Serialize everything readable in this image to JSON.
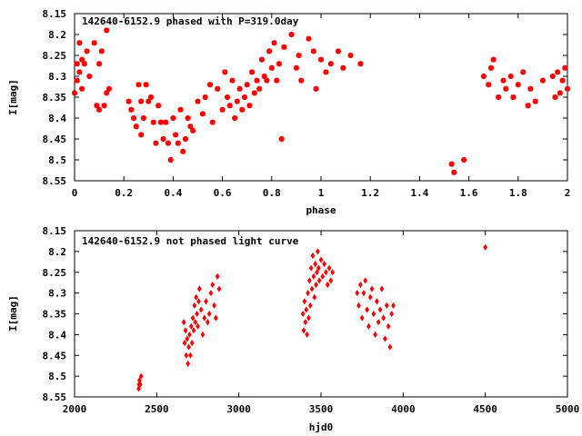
{
  "chart_data": [
    {
      "type": "scatter",
      "title": "142640-6152.9 phased with P=319.0day",
      "xlabel": "phase",
      "ylabel": "I[mag]",
      "xlim": [
        0,
        2
      ],
      "ylim": [
        8.55,
        8.15
      ],
      "y_inverted": true,
      "xticks": [
        "0",
        "0.2",
        "0.4",
        "0.6",
        "0.8",
        "1",
        "1.2",
        "1.4",
        "1.6",
        "1.8",
        "2"
      ],
      "yticks": [
        "8.15",
        "8.2",
        "8.25",
        "8.3",
        "8.35",
        "8.4",
        "8.45",
        "8.5",
        "8.55"
      ],
      "grid": false,
      "legend": "none",
      "marker_color": "#ff0000",
      "series": [
        {
          "x": [
            0.0,
            0.01,
            0.01,
            0.02,
            0.02,
            0.03,
            0.03,
            0.04,
            0.05,
            0.06,
            0.08,
            0.09,
            0.1,
            0.1,
            0.11,
            0.12,
            0.13,
            0.13,
            0.14,
            0.22,
            0.23,
            0.24,
            0.25,
            0.26,
            0.27,
            0.27,
            0.28,
            0.29,
            0.3,
            0.31,
            0.32,
            0.33,
            0.34,
            0.35,
            0.36,
            0.37,
            0.38,
            0.39,
            0.4,
            0.41,
            0.42,
            0.43,
            0.44,
            0.45,
            0.46,
            0.47,
            0.48,
            0.5,
            0.52,
            0.53,
            0.55,
            0.56,
            0.58,
            0.6,
            0.61,
            0.62,
            0.63,
            0.64,
            0.65,
            0.66,
            0.67,
            0.68,
            0.69,
            0.7,
            0.71,
            0.72,
            0.73,
            0.74,
            0.75,
            0.76,
            0.77,
            0.78,
            0.79,
            0.8,
            0.81,
            0.82,
            0.83,
            0.84,
            0.85,
            0.88,
            0.9,
            0.91,
            0.92,
            0.95,
            0.97,
            0.98,
            1.0,
            1.02,
            1.04,
            1.07,
            1.09,
            1.12,
            1.16,
            1.53,
            1.54,
            1.58,
            1.66,
            1.68,
            1.69,
            1.7,
            1.72,
            1.74,
            1.75,
            1.77,
            1.78,
            1.8,
            1.82,
            1.84,
            1.85,
            1.87,
            1.9,
            1.94,
            1.95,
            1.96,
            1.97,
            1.98,
            1.99,
            2.0
          ],
          "y": [
            8.34,
            8.27,
            8.31,
            8.22,
            8.29,
            8.26,
            8.33,
            8.27,
            8.24,
            8.3,
            8.22,
            8.37,
            8.38,
            8.27,
            8.24,
            8.37,
            8.34,
            8.19,
            8.33,
            8.36,
            8.38,
            8.4,
            8.42,
            8.32,
            8.36,
            8.44,
            8.4,
            8.32,
            8.36,
            8.35,
            8.41,
            8.46,
            8.37,
            8.41,
            8.45,
            8.41,
            8.46,
            8.5,
            8.4,
            8.44,
            8.46,
            8.38,
            8.48,
            8.45,
            8.4,
            8.42,
            8.43,
            8.36,
            8.39,
            8.35,
            8.32,
            8.41,
            8.33,
            8.38,
            8.29,
            8.35,
            8.37,
            8.31,
            8.4,
            8.36,
            8.33,
            8.38,
            8.35,
            8.32,
            8.37,
            8.29,
            8.34,
            8.31,
            8.33,
            8.26,
            8.3,
            8.31,
            8.24,
            8.28,
            8.22,
            8.31,
            8.27,
            8.45,
            8.23,
            8.2,
            8.28,
            8.25,
            8.31,
            8.21,
            8.24,
            8.33,
            8.26,
            8.29,
            8.27,
            8.24,
            8.28,
            8.25,
            8.27,
            8.51,
            8.53,
            8.5,
            8.3,
            8.32,
            8.28,
            8.26,
            8.35,
            8.31,
            8.33,
            8.3,
            8.35,
            8.32,
            8.29,
            8.37,
            8.33,
            8.36,
            8.31,
            8.3,
            8.35,
            8.29,
            8.34,
            8.31,
            8.28,
            8.33
          ]
        }
      ]
    },
    {
      "type": "scatter",
      "title": "142640-6152.9 not phased light curve",
      "xlabel": "hjd0",
      "ylabel": "I[mag]",
      "xlim": [
        2000,
        5000
      ],
      "ylim": [
        8.55,
        8.15
      ],
      "y_inverted": true,
      "xticks": [
        "2000",
        "2500",
        "3000",
        "3500",
        "4000",
        "4500",
        "5000"
      ],
      "yticks": [
        "8.15",
        "8.2",
        "8.25",
        "8.3",
        "8.35",
        "8.4",
        "8.45",
        "8.5",
        "8.55"
      ],
      "grid": false,
      "legend": "none",
      "marker_color": "#ff0000",
      "series": [
        {
          "x": [
            2390,
            2392,
            2395,
            2400,
            2405,
            2665,
            2670,
            2675,
            2680,
            2685,
            2690,
            2695,
            2700,
            2705,
            2710,
            2715,
            2720,
            2725,
            2730,
            2735,
            2740,
            2745,
            2750,
            2755,
            2760,
            2770,
            2780,
            2790,
            2800,
            2810,
            2820,
            2830,
            2840,
            2850,
            2860,
            2870,
            2880,
            3390,
            3395,
            3400,
            3405,
            3410,
            3415,
            3420,
            3425,
            3430,
            3435,
            3440,
            3445,
            3450,
            3455,
            3460,
            3465,
            3470,
            3475,
            3480,
            3485,
            3490,
            3500,
            3510,
            3520,
            3530,
            3540,
            3550,
            3560,
            3570,
            3720,
            3730,
            3740,
            3750,
            3760,
            3770,
            3780,
            3790,
            3800,
            3810,
            3820,
            3830,
            3840,
            3850,
            3860,
            3870,
            3880,
            3890,
            3900,
            3910,
            3920,
            3930,
            3940,
            4500
          ],
          "y": [
            8.53,
            8.52,
            8.51,
            8.52,
            8.5,
            8.37,
            8.42,
            8.39,
            8.45,
            8.41,
            8.47,
            8.43,
            8.4,
            8.45,
            8.38,
            8.42,
            8.36,
            8.39,
            8.33,
            8.37,
            8.31,
            8.35,
            8.38,
            8.32,
            8.29,
            8.34,
            8.4,
            8.36,
            8.32,
            8.37,
            8.35,
            8.3,
            8.28,
            8.33,
            8.36,
            8.26,
            8.29,
            8.35,
            8.39,
            8.32,
            8.37,
            8.34,
            8.4,
            8.3,
            8.36,
            8.27,
            8.33,
            8.24,
            8.29,
            8.21,
            8.26,
            8.31,
            8.23,
            8.28,
            8.25,
            8.2,
            8.24,
            8.27,
            8.22,
            8.26,
            8.23,
            8.25,
            8.28,
            8.24,
            8.27,
            8.25,
            8.3,
            8.33,
            8.28,
            8.36,
            8.3,
            8.27,
            8.34,
            8.38,
            8.31,
            8.29,
            8.35,
            8.4,
            8.32,
            8.37,
            8.34,
            8.29,
            8.36,
            8.41,
            8.33,
            8.38,
            8.43,
            8.35,
            8.33,
            8.19
          ]
        }
      ]
    }
  ]
}
